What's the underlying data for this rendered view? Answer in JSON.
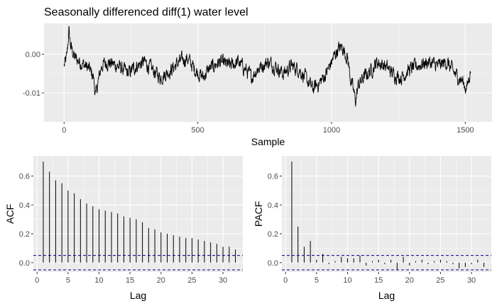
{
  "figure": {
    "title": "Seasonally differenced diff(1) water level"
  },
  "colors": {
    "panel": "#ebebeb",
    "grid_major": "#ffffff",
    "line": "#000000",
    "ci": "#00008b",
    "tick_text": "#4d4d4d"
  },
  "chart_data": [
    {
      "type": "line",
      "title": "Seasonally differenced diff(1) water level",
      "xlabel": "Sample",
      "ylabel": "",
      "xlim": [
        -75,
        1600
      ],
      "ylim": [
        -0.0175,
        0.008
      ],
      "x_ticks": [
        0,
        500,
        1000,
        1500
      ],
      "y_ticks": [
        0.0,
        -0.01
      ],
      "x_tick_labels": [
        "0",
        "500",
        "1000",
        "1500"
      ],
      "y_tick_labels": [
        "0.00",
        "-0.01"
      ],
      "n_points": 1520,
      "series": [
        {
          "x_range": [
            0,
            1520
          ],
          "keyframes": [
            [
              0,
              -0.003
            ],
            [
              10,
              -0.001
            ],
            [
              18,
              0.006
            ],
            [
              25,
              0.002
            ],
            [
              40,
              -0.001
            ],
            [
              60,
              -0.002
            ],
            [
              80,
              -0.003
            ],
            [
              95,
              -0.004
            ],
            [
              110,
              -0.006
            ],
            [
              118,
              -0.011
            ],
            [
              125,
              -0.008
            ],
            [
              140,
              -0.003
            ],
            [
              160,
              -0.002
            ],
            [
              200,
              -0.003
            ],
            [
              240,
              -0.005
            ],
            [
              270,
              -0.003
            ],
            [
              300,
              -0.002
            ],
            [
              330,
              -0.004
            ],
            [
              360,
              -0.006
            ],
            [
              400,
              -0.004
            ],
            [
              430,
              -0.002
            ],
            [
              460,
              -0.001
            ],
            [
              490,
              -0.004
            ],
            [
              520,
              -0.006
            ],
            [
              540,
              -0.004
            ],
            [
              580,
              -0.002
            ],
            [
              620,
              -0.003
            ],
            [
              650,
              -0.002
            ],
            [
              680,
              -0.004
            ],
            [
              700,
              -0.006
            ],
            [
              720,
              -0.004
            ],
            [
              760,
              -0.002
            ],
            [
              790,
              -0.003
            ],
            [
              820,
              -0.005
            ],
            [
              850,
              -0.003
            ],
            [
              880,
              -0.004
            ],
            [
              900,
              -0.006
            ],
            [
              930,
              -0.009
            ],
            [
              960,
              -0.007
            ],
            [
              980,
              -0.005
            ],
            [
              1000,
              -0.002
            ],
            [
              1020,
              0.001
            ],
            [
              1040,
              0.002
            ],
            [
              1060,
              -0.001
            ],
            [
              1070,
              -0.006
            ],
            [
              1080,
              -0.009
            ],
            [
              1090,
              -0.012
            ],
            [
              1100,
              -0.008
            ],
            [
              1120,
              -0.006
            ],
            [
              1150,
              -0.004
            ],
            [
              1170,
              -0.002
            ],
            [
              1200,
              -0.003
            ],
            [
              1230,
              -0.005
            ],
            [
              1260,
              -0.006
            ],
            [
              1290,
              -0.004
            ],
            [
              1320,
              -0.003
            ],
            [
              1360,
              -0.002
            ],
            [
              1400,
              -0.003
            ],
            [
              1430,
              -0.002
            ],
            [
              1460,
              -0.005
            ],
            [
              1490,
              -0.007
            ],
            [
              1505,
              -0.009
            ],
            [
              1520,
              -0.004
            ]
          ],
          "noise_amplitude": 0.0015
        }
      ]
    },
    {
      "type": "bar",
      "subtype": "acf",
      "xlabel": "Lag",
      "ylabel": "ACF",
      "xlim": [
        -0.6,
        33.2
      ],
      "ylim": [
        -0.065,
        0.74
      ],
      "x_ticks": [
        0,
        5,
        10,
        15,
        20,
        25,
        30
      ],
      "y_ticks": [
        0.0,
        0.2,
        0.4,
        0.6
      ],
      "x_tick_labels": [
        "0",
        "5",
        "10",
        "15",
        "20",
        "25",
        "30"
      ],
      "y_tick_labels": [
        "0.0",
        "0.2",
        "0.4",
        "0.6"
      ],
      "ci": 0.05,
      "lags": [
        1,
        2,
        3,
        4,
        5,
        6,
        7,
        8,
        9,
        10,
        11,
        12,
        13,
        14,
        15,
        16,
        17,
        18,
        19,
        20,
        21,
        22,
        23,
        24,
        25,
        26,
        27,
        28,
        29,
        30,
        31,
        32
      ],
      "values": [
        0.7,
        0.63,
        0.57,
        0.55,
        0.5,
        0.48,
        0.44,
        0.41,
        0.39,
        0.37,
        0.36,
        0.35,
        0.34,
        0.32,
        0.31,
        0.3,
        0.28,
        0.24,
        0.23,
        0.21,
        0.2,
        0.19,
        0.18,
        0.17,
        0.17,
        0.16,
        0.15,
        0.14,
        0.13,
        0.11,
        0.11,
        0.09
      ]
    },
    {
      "type": "bar",
      "subtype": "pacf",
      "xlabel": "Lag",
      "ylabel": "PACF",
      "xlim": [
        -0.6,
        33.2
      ],
      "ylim": [
        -0.065,
        0.74
      ],
      "x_ticks": [
        0,
        5,
        10,
        15,
        20,
        25,
        30
      ],
      "y_ticks": [
        0.0,
        0.2,
        0.4,
        0.6
      ],
      "x_tick_labels": [
        "0",
        "5",
        "10",
        "15",
        "20",
        "25",
        "30"
      ],
      "y_tick_labels": [
        "0.0",
        "0.2",
        "0.4",
        "0.6"
      ],
      "ci": 0.05,
      "lags": [
        1,
        2,
        3,
        4,
        5,
        6,
        7,
        8,
        9,
        10,
        11,
        12,
        13,
        14,
        15,
        16,
        17,
        18,
        19,
        20,
        21,
        22,
        23,
        24,
        25,
        26,
        27,
        28,
        29,
        30,
        31,
        32
      ],
      "values": [
        0.7,
        0.25,
        0.11,
        0.15,
        0.02,
        0.06,
        -0.01,
        0.01,
        0.04,
        0.03,
        0.03,
        0.05,
        -0.02,
        0.01,
        0.02,
        -0.01,
        0.02,
        -0.05,
        0.04,
        -0.02,
        0.01,
        0.02,
        -0.01,
        0.01,
        0.02,
        0.01,
        -0.01,
        -0.04,
        -0.03,
        -0.01,
        0.02,
        -0.03
      ]
    }
  ]
}
